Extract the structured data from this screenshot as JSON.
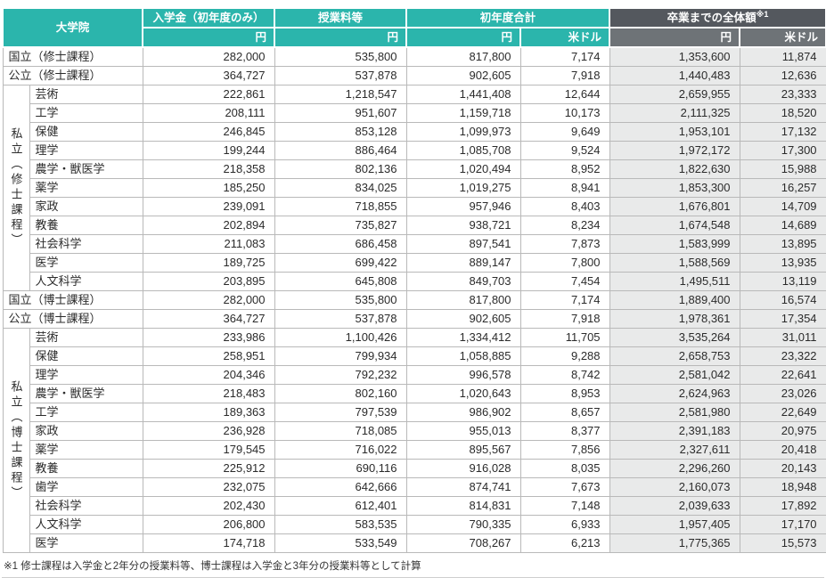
{
  "colors": {
    "header_teal": "#2bb5ac",
    "header_dark": "#54585e",
    "header_gray": "#6e7377",
    "column_shade": "#e9eaea"
  },
  "table": {
    "header": {
      "col_univ": "大学院",
      "col_admission": "入学金（初年度のみ）",
      "col_tuition": "授業料等",
      "col_first_year": "初年度合計",
      "col_total": "卒業までの全体額",
      "col_total_ref": "※1",
      "unit_yen": "円",
      "unit_usd": "米ドル"
    },
    "sections": [
      {
        "type": "single",
        "label": "国立（修士課程）",
        "values": [
          "282,000",
          "535,800",
          "817,800",
          "7,174",
          "1,353,600",
          "11,874"
        ]
      },
      {
        "type": "single",
        "label": "公立（修士課程）",
        "values": [
          "364,727",
          "537,878",
          "902,605",
          "7,918",
          "1,440,483",
          "12,636"
        ]
      },
      {
        "type": "group",
        "label": "私立（修士課程）",
        "rows": [
          {
            "label": "芸術",
            "values": [
              "222,861",
              "1,218,547",
              "1,441,408",
              "12,644",
              "2,659,955",
              "23,333"
            ]
          },
          {
            "label": "工学",
            "values": [
              "208,111",
              "951,607",
              "1,159,718",
              "10,173",
              "2,111,325",
              "18,520"
            ]
          },
          {
            "label": "保健",
            "values": [
              "246,845",
              "853,128",
              "1,099,973",
              "9,649",
              "1,953,101",
              "17,132"
            ]
          },
          {
            "label": "理学",
            "values": [
              "199,244",
              "886,464",
              "1,085,708",
              "9,524",
              "1,972,172",
              "17,300"
            ]
          },
          {
            "label": "農学・獣医学",
            "values": [
              "218,358",
              "802,136",
              "1,020,494",
              "8,952",
              "1,822,630",
              "15,988"
            ]
          },
          {
            "label": "薬学",
            "values": [
              "185,250",
              "834,025",
              "1,019,275",
              "8,941",
              "1,853,300",
              "16,257"
            ]
          },
          {
            "label": "家政",
            "values": [
              "239,091",
              "718,855",
              "957,946",
              "8,403",
              "1,676,801",
              "14,709"
            ]
          },
          {
            "label": "教養",
            "values": [
              "202,894",
              "735,827",
              "938,721",
              "8,234",
              "1,674,548",
              "14,689"
            ]
          },
          {
            "label": "社会科学",
            "values": [
              "211,083",
              "686,458",
              "897,541",
              "7,873",
              "1,583,999",
              "13,895"
            ]
          },
          {
            "label": "医学",
            "values": [
              "189,725",
              "699,422",
              "889,147",
              "7,800",
              "1,588,569",
              "13,935"
            ]
          },
          {
            "label": "人文科学",
            "values": [
              "203,895",
              "645,808",
              "849,703",
              "7,454",
              "1,495,511",
              "13,119"
            ]
          }
        ]
      },
      {
        "type": "single",
        "label": "国立（博士課程）",
        "values": [
          "282,000",
          "535,800",
          "817,800",
          "7,174",
          "1,889,400",
          "16,574"
        ]
      },
      {
        "type": "single",
        "label": "公立（博士課程）",
        "values": [
          "364,727",
          "537,878",
          "902,605",
          "7,918",
          "1,978,361",
          "17,354"
        ]
      },
      {
        "type": "group",
        "label": "私立（博士課程）",
        "rows": [
          {
            "label": "芸術",
            "values": [
              "233,986",
              "1,100,426",
              "1,334,412",
              "11,705",
              "3,535,264",
              "31,011"
            ]
          },
          {
            "label": "保健",
            "values": [
              "258,951",
              "799,934",
              "1,058,885",
              "9,288",
              "2,658,753",
              "23,322"
            ]
          },
          {
            "label": "理学",
            "values": [
              "204,346",
              "792,232",
              "996,578",
              "8,742",
              "2,581,042",
              "22,641"
            ]
          },
          {
            "label": "農学・獣医学",
            "values": [
              "218,483",
              "802,160",
              "1,020,643",
              "8,953",
              "2,624,963",
              "23,026"
            ]
          },
          {
            "label": "工学",
            "values": [
              "189,363",
              "797,539",
              "986,902",
              "8,657",
              "2,581,980",
              "22,649"
            ]
          },
          {
            "label": "家政",
            "values": [
              "236,928",
              "718,085",
              "955,013",
              "8,377",
              "2,391,183",
              "20,975"
            ]
          },
          {
            "label": "薬学",
            "values": [
              "179,545",
              "716,022",
              "895,567",
              "7,856",
              "2,327,611",
              "20,418"
            ]
          },
          {
            "label": "教養",
            "values": [
              "225,912",
              "690,116",
              "916,028",
              "8,035",
              "2,296,260",
              "20,143"
            ]
          },
          {
            "label": "歯学",
            "values": [
              "232,075",
              "642,666",
              "874,741",
              "7,673",
              "2,160,073",
              "18,948"
            ]
          },
          {
            "label": "社会科学",
            "values": [
              "202,430",
              "612,401",
              "814,831",
              "7,148",
              "2,039,633",
              "17,892"
            ]
          },
          {
            "label": "人文科学",
            "values": [
              "206,800",
              "583,535",
              "790,335",
              "6,933",
              "1,957,405",
              "17,170"
            ]
          },
          {
            "label": "医学",
            "values": [
              "174,718",
              "533,549",
              "708,267",
              "6,213",
              "1,775,365",
              "15,573"
            ]
          }
        ]
      }
    ]
  },
  "footnote": "※1 修士課程は入学金と2年分の授業料等、博士課程は入学金と3年分の授業料等として計算"
}
